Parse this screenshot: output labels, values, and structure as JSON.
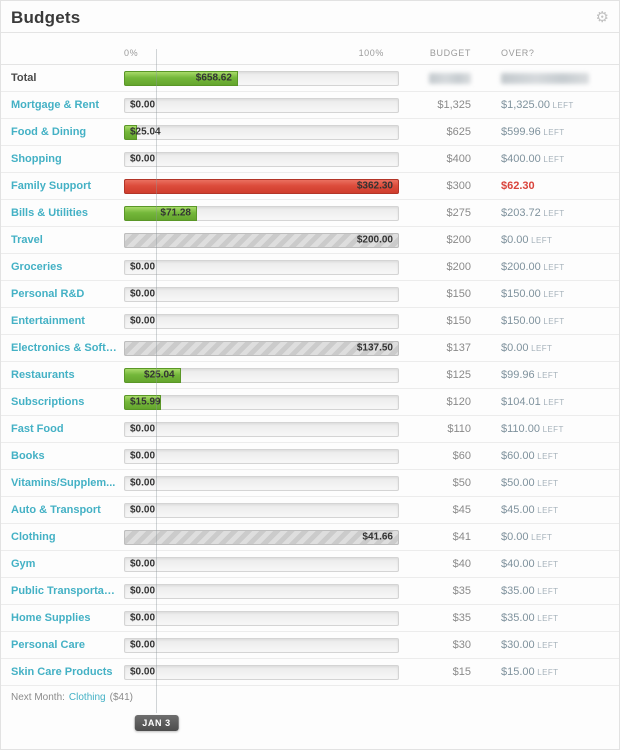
{
  "header": {
    "title": "Budgets",
    "gear_icon": "gear-icon"
  },
  "columns": {
    "zero": "0%",
    "hundred": "100%",
    "budget": "BUDGET",
    "over": "OVER?"
  },
  "colors": {
    "accent_teal": "#44b1c5",
    "bar_green": "#74b73a",
    "bar_red": "#dc4c3b",
    "over_red": "#d9433b",
    "remaining_text": "#7f929d"
  },
  "rows": [
    {
      "label": "Total",
      "is_total": true,
      "bar": {
        "style": "green",
        "pct": 41,
        "amount": "$658.62",
        "align": "fill-right"
      },
      "budget_redacted": true,
      "over_redacted": true
    },
    {
      "label": "Mortgage & Rent",
      "bar": {
        "style": "empty",
        "pct": 0,
        "amount": "$0.00",
        "align": "left"
      },
      "budget": "$1,325",
      "over_amount": "$1,325.00",
      "over_suffix": "LEFT",
      "over_status": "left"
    },
    {
      "label": "Food & Dining",
      "bar": {
        "style": "green",
        "pct": 4,
        "amount": "$25.04",
        "align": "left"
      },
      "budget": "$625",
      "over_amount": "$599.96",
      "over_suffix": "LEFT",
      "over_status": "left"
    },
    {
      "label": "Shopping",
      "bar": {
        "style": "empty",
        "pct": 0,
        "amount": "$0.00",
        "align": "left"
      },
      "budget": "$400",
      "over_amount": "$400.00",
      "over_suffix": "LEFT",
      "over_status": "left"
    },
    {
      "label": "Family Support",
      "bar": {
        "style": "red",
        "pct": 100,
        "amount": "$362.30",
        "align": "fill-right"
      },
      "budget": "$300",
      "over_amount": "$62.30",
      "over_suffix": "",
      "over_status": "over"
    },
    {
      "label": "Bills & Utilities",
      "bar": {
        "style": "green",
        "pct": 26,
        "amount": "$71.28",
        "align": "fill-right"
      },
      "budget": "$275",
      "over_amount": "$203.72",
      "over_suffix": "LEFT",
      "over_status": "left"
    },
    {
      "label": "Travel",
      "bar": {
        "style": "striped",
        "pct": 100,
        "amount": "$200.00",
        "align": "fill-right"
      },
      "budget": "$200",
      "over_amount": "$0.00",
      "over_suffix": "LEFT",
      "over_status": "left"
    },
    {
      "label": "Groceries",
      "bar": {
        "style": "empty",
        "pct": 0,
        "amount": "$0.00",
        "align": "left"
      },
      "budget": "$200",
      "over_amount": "$200.00",
      "over_suffix": "LEFT",
      "over_status": "left"
    },
    {
      "label": "Personal R&D",
      "bar": {
        "style": "empty",
        "pct": 0,
        "amount": "$0.00",
        "align": "left"
      },
      "budget": "$150",
      "over_amount": "$150.00",
      "over_suffix": "LEFT",
      "over_status": "left"
    },
    {
      "label": "Entertainment",
      "bar": {
        "style": "empty",
        "pct": 0,
        "amount": "$0.00",
        "align": "left"
      },
      "budget": "$150",
      "over_amount": "$150.00",
      "over_suffix": "LEFT",
      "over_status": "left"
    },
    {
      "label": "Electronics & Softw...",
      "bar": {
        "style": "striped",
        "pct": 100,
        "amount": "$137.50",
        "align": "fill-right"
      },
      "budget": "$137",
      "over_amount": "$0.00",
      "over_suffix": "LEFT",
      "over_status": "left"
    },
    {
      "label": "Restaurants",
      "bar": {
        "style": "green",
        "pct": 20,
        "amount": "$25.04",
        "align": "fill-right"
      },
      "budget": "$125",
      "over_amount": "$99.96",
      "over_suffix": "LEFT",
      "over_status": "left"
    },
    {
      "label": "Subscriptions",
      "bar": {
        "style": "green",
        "pct": 13,
        "amount": "$15.99",
        "align": "left"
      },
      "budget": "$120",
      "over_amount": "$104.01",
      "over_suffix": "LEFT",
      "over_status": "left"
    },
    {
      "label": "Fast Food",
      "bar": {
        "style": "empty",
        "pct": 0,
        "amount": "$0.00",
        "align": "left"
      },
      "budget": "$110",
      "over_amount": "$110.00",
      "over_suffix": "LEFT",
      "over_status": "left"
    },
    {
      "label": "Books",
      "bar": {
        "style": "empty",
        "pct": 0,
        "amount": "$0.00",
        "align": "left"
      },
      "budget": "$60",
      "over_amount": "$60.00",
      "over_suffix": "LEFT",
      "over_status": "left"
    },
    {
      "label": "Vitamins/Supplem...",
      "bar": {
        "style": "empty",
        "pct": 0,
        "amount": "$0.00",
        "align": "left"
      },
      "budget": "$50",
      "over_amount": "$50.00",
      "over_suffix": "LEFT",
      "over_status": "left"
    },
    {
      "label": "Auto & Transport",
      "bar": {
        "style": "empty",
        "pct": 0,
        "amount": "$0.00",
        "align": "left"
      },
      "budget": "$45",
      "over_amount": "$45.00",
      "over_suffix": "LEFT",
      "over_status": "left"
    },
    {
      "label": "Clothing",
      "bar": {
        "style": "striped",
        "pct": 100,
        "amount": "$41.66",
        "align": "fill-right"
      },
      "budget": "$41",
      "over_amount": "$0.00",
      "over_suffix": "LEFT",
      "over_status": "left"
    },
    {
      "label": "Gym",
      "bar": {
        "style": "empty",
        "pct": 0,
        "amount": "$0.00",
        "align": "left"
      },
      "budget": "$40",
      "over_amount": "$40.00",
      "over_suffix": "LEFT",
      "over_status": "left"
    },
    {
      "label": "Public Transportation",
      "bar": {
        "style": "empty",
        "pct": 0,
        "amount": "$0.00",
        "align": "left"
      },
      "budget": "$35",
      "over_amount": "$35.00",
      "over_suffix": "LEFT",
      "over_status": "left"
    },
    {
      "label": "Home Supplies",
      "bar": {
        "style": "empty",
        "pct": 0,
        "amount": "$0.00",
        "align": "left"
      },
      "budget": "$35",
      "over_amount": "$35.00",
      "over_suffix": "LEFT",
      "over_status": "left"
    },
    {
      "label": "Personal Care",
      "bar": {
        "style": "empty",
        "pct": 0,
        "amount": "$0.00",
        "align": "left"
      },
      "budget": "$30",
      "over_amount": "$30.00",
      "over_suffix": "LEFT",
      "over_status": "left"
    },
    {
      "label": "Skin Care Products",
      "bar": {
        "style": "empty",
        "pct": 0,
        "amount": "$0.00",
        "align": "left"
      },
      "budget": "$15",
      "over_amount": "$15.00",
      "over_suffix": "LEFT",
      "over_status": "left"
    }
  ],
  "footer": {
    "next_month_prefix": "Next Month:",
    "next_month_link": "Clothing",
    "next_month_suffix": "($41)",
    "date_marker": "JAN 3"
  }
}
